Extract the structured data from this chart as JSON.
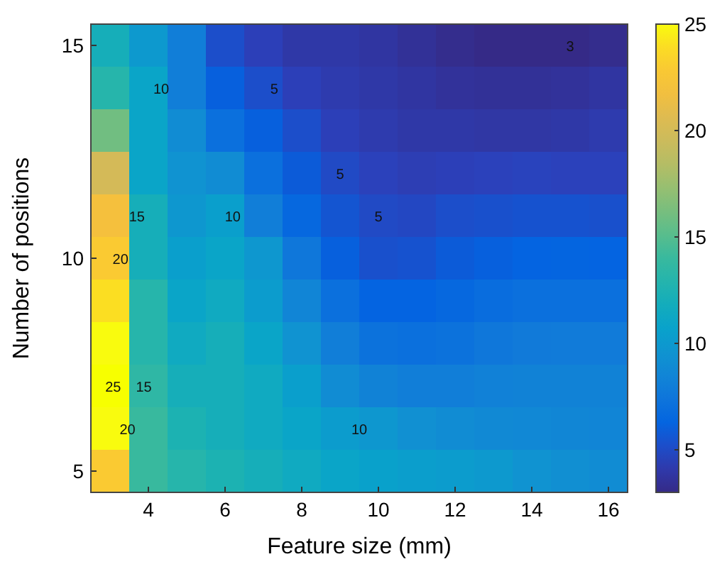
{
  "chart_data": {
    "type": "heatmap",
    "xlabel": "Feature size (mm)",
    "ylabel": "Number of positions",
    "categories": [
      null,
      "4",
      null,
      "6",
      null,
      "8",
      null,
      "10",
      null,
      "12",
      null,
      "14",
      null,
      "16"
    ],
    "y_categories": [
      "15",
      null,
      null,
      null,
      null,
      "10",
      null,
      null,
      null,
      null,
      "5"
    ],
    "cells": [
      [
        12,
        10,
        8,
        5.2,
        4.5,
        4,
        4,
        3.8,
        3.5,
        3.2,
        3,
        3,
        3,
        3.2
      ],
      [
        13,
        11,
        8,
        6,
        5.2,
        4.5,
        4.2,
        4,
        3.8,
        3.6,
        3.5,
        3.5,
        3.6,
        3.8
      ],
      [
        16,
        11,
        9,
        7,
        6,
        5.2,
        4.5,
        4.2,
        4,
        4,
        3.9,
        3.9,
        4,
        4.2
      ],
      [
        20,
        11,
        9.5,
        9,
        7,
        5.8,
        5,
        4.6,
        4.4,
        4.5,
        4.6,
        4.7,
        4.6,
        4.6
      ],
      [
        22,
        12,
        9.8,
        10.5,
        8,
        6.5,
        5.5,
        5,
        4.9,
        5.2,
        5.3,
        5.4,
        5.4,
        5.3
      ],
      [
        23,
        12,
        10.5,
        11,
        9.8,
        7.5,
        6,
        5.3,
        5.4,
        5.8,
        6,
        6.2,
        6.3,
        6.2
      ],
      [
        24,
        13,
        11,
        11.5,
        10.2,
        8.5,
        7,
        6.2,
        6.2,
        6.5,
        6.8,
        7,
        7,
        7
      ],
      [
        25,
        13,
        11.5,
        12,
        11,
        9.5,
        8,
        7.2,
        7,
        7.2,
        7.5,
        7.7,
        7.8,
        7.8
      ],
      [
        26,
        13.5,
        12,
        12,
        11.5,
        10.5,
        9,
        8.3,
        8,
        8,
        8.2,
        8.3,
        8.3,
        8.3
      ],
      [
        25,
        14,
        12.5,
        12,
        11.5,
        11,
        10.2,
        9.8,
        9.3,
        9,
        8.8,
        8.7,
        8.6,
        8.5
      ],
      [
        23,
        14,
        13,
        12.5,
        12,
        11.5,
        11,
        10.6,
        10.4,
        10.2,
        10,
        9.5,
        9.2,
        9
      ]
    ],
    "clim": [
      3,
      25
    ],
    "cticks": [
      5,
      10,
      15,
      20,
      25
    ],
    "annotations": [
      "3",
      "5",
      "5",
      "5",
      "10",
      "10",
      "10",
      "15",
      "15",
      "20",
      "20",
      "25"
    ]
  }
}
